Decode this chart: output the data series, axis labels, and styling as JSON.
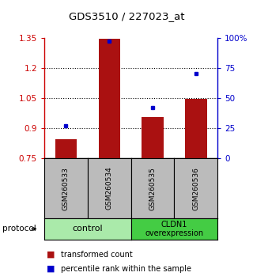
{
  "title": "GDS3510 / 227023_at",
  "samples": [
    "GSM260533",
    "GSM260534",
    "GSM260535",
    "GSM260536"
  ],
  "bar_values": [
    0.845,
    1.345,
    0.955,
    1.045
  ],
  "percentile_values": [
    27,
    97,
    42,
    70
  ],
  "ylim_left": [
    0.75,
    1.35
  ],
  "ylim_right": [
    0,
    100
  ],
  "yticks_left": [
    0.75,
    0.9,
    1.05,
    1.2,
    1.35
  ],
  "ytick_labels_left": [
    "0.75",
    "0.9",
    "1.05",
    "1.2",
    "1.35"
  ],
  "yticks_right": [
    0,
    25,
    50,
    75,
    100
  ],
  "ytick_labels_right": [
    "0",
    "25",
    "50",
    "75",
    "100%"
  ],
  "bar_color": "#AA1111",
  "point_color": "#0000CC",
  "control_label": "control",
  "overexpression_label": "CLDN1\noverexpression",
  "control_color": "#AAEAAA",
  "overexpression_color": "#44CC44",
  "sample_bg_color": "#BBBBBB",
  "legend_bar_label": "transformed count",
  "legend_point_label": "percentile rank within the sample",
  "protocol_label": "protocol",
  "bar_width": 0.5,
  "left_ax_color": "#CC0000",
  "right_ax_color": "#0000CC"
}
